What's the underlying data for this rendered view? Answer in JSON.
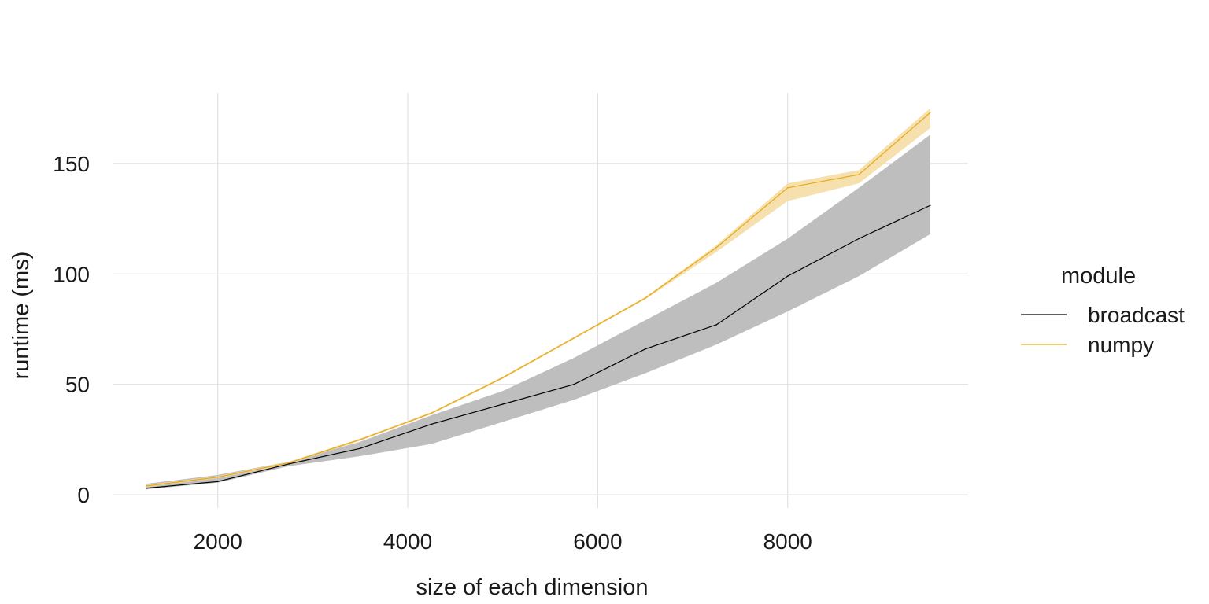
{
  "chart_data": {
    "type": "line",
    "title": "",
    "xlabel": "size of each dimension",
    "ylabel": "runtime (ms)",
    "x": [
      1250,
      2000,
      2750,
      3500,
      4250,
      5000,
      5750,
      6500,
      7250,
      8000,
      8750,
      9500
    ],
    "xlim": [
      900,
      9900
    ],
    "ylim": [
      -6,
      182
    ],
    "xticks": [
      2000,
      4000,
      6000,
      8000
    ],
    "xtick_labels": [
      "2000",
      "4000",
      "6000",
      "8000"
    ],
    "yticks": [
      0,
      50,
      100,
      150
    ],
    "ytick_labels": [
      "0",
      "50",
      "100",
      "150"
    ],
    "grid": true,
    "legend": {
      "title": "module",
      "placement": "right"
    },
    "series": [
      {
        "name": "broadcast",
        "color": "#000000",
        "band_color": "#bebebe",
        "values": [
          3,
          6,
          14,
          21,
          32,
          41,
          50,
          66,
          77,
          99,
          116,
          131
        ],
        "lower": [
          2.5,
          5.5,
          13,
          17.5,
          23,
          33,
          43,
          55,
          68,
          83,
          99,
          118
        ],
        "upper": [
          5,
          9,
          15,
          24,
          36,
          47,
          62,
          79,
          96,
          116,
          139,
          163
        ]
      },
      {
        "name": "numpy",
        "color": "#e6a817",
        "band_color": "#f5dca0",
        "values": [
          4,
          8,
          14.5,
          25,
          37,
          53,
          71,
          89,
          112,
          139,
          145,
          173
        ],
        "lower": [
          3.5,
          7.5,
          14,
          24.5,
          36.5,
          52.5,
          70.5,
          88.5,
          110,
          133,
          141,
          166
        ],
        "upper": [
          4.5,
          8.5,
          15,
          25.5,
          37.5,
          53.5,
          71.5,
          89.5,
          113,
          141,
          147,
          175
        ]
      }
    ]
  }
}
